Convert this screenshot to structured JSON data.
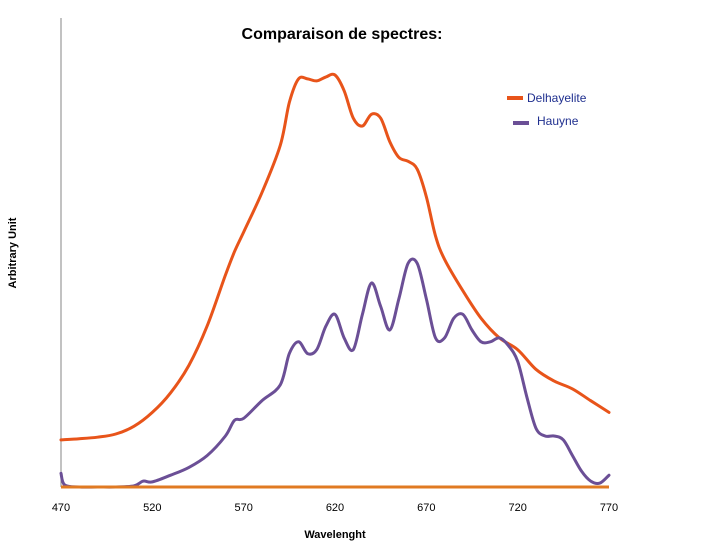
{
  "chart_data": {
    "type": "line",
    "title": "Comparaison de spectres:",
    "xlabel": "Wavelenght",
    "ylabel": "Arbitrary Unit",
    "xlim": [
      470,
      770
    ],
    "ylim": [
      0,
      105
    ],
    "x_ticks": [
      "470",
      "520",
      "570",
      "620",
      "670",
      "720",
      "770"
    ],
    "y_ticks_shown": false,
    "grid": false,
    "legend": "top-right",
    "series": [
      {
        "name": "Delhayelite",
        "color": "#e8541a",
        "x": [
          470,
          480,
          490,
          500,
          510,
          520,
          530,
          540,
          550,
          560,
          565,
          570,
          580,
          590,
          595,
          600,
          605,
          610,
          615,
          620,
          625,
          630,
          635,
          640,
          645,
          650,
          655,
          660,
          665,
          670,
          675,
          680,
          690,
          700,
          710,
          720,
          730,
          740,
          750,
          760,
          770
        ],
        "values": [
          12,
          12.3,
          12.7,
          13.5,
          15.5,
          19,
          24,
          31,
          41,
          54,
          60,
          65,
          75,
          87,
          98,
          104,
          104,
          103.5,
          104.5,
          105,
          101,
          94,
          92,
          95,
          94,
          88,
          84,
          83,
          81,
          74,
          64,
          58,
          50,
          43,
          38,
          35,
          30,
          27,
          25,
          22,
          19
        ]
      },
      {
        "name": "Hauyne",
        "color": "#6b4f96",
        "x": [
          470,
          472,
          480,
          490,
          500,
          510,
          515,
          520,
          530,
          540,
          550,
          560,
          565,
          570,
          580,
          590,
          595,
          600,
          605,
          610,
          615,
          620,
          625,
          630,
          635,
          640,
          645,
          650,
          655,
          660,
          665,
          670,
          675,
          680,
          685,
          690,
          695,
          700,
          705,
          710,
          715,
          720,
          725,
          730,
          735,
          740,
          745,
          750,
          755,
          760,
          765,
          770
        ],
        "values": [
          3.5,
          0.5,
          0,
          0,
          0,
          0.3,
          1.5,
          1.3,
          3,
          5,
          8,
          13,
          17,
          17.5,
          22,
          26,
          34,
          37,
          34,
          35,
          41,
          44,
          38,
          35,
          44,
          52,
          46,
          40,
          48,
          57,
          57,
          48,
          38,
          38,
          43,
          44,
          40,
          37,
          37,
          38,
          36,
          32,
          23,
          15,
          13,
          13,
          12,
          8,
          4,
          1.5,
          1,
          3
        ]
      }
    ]
  }
}
